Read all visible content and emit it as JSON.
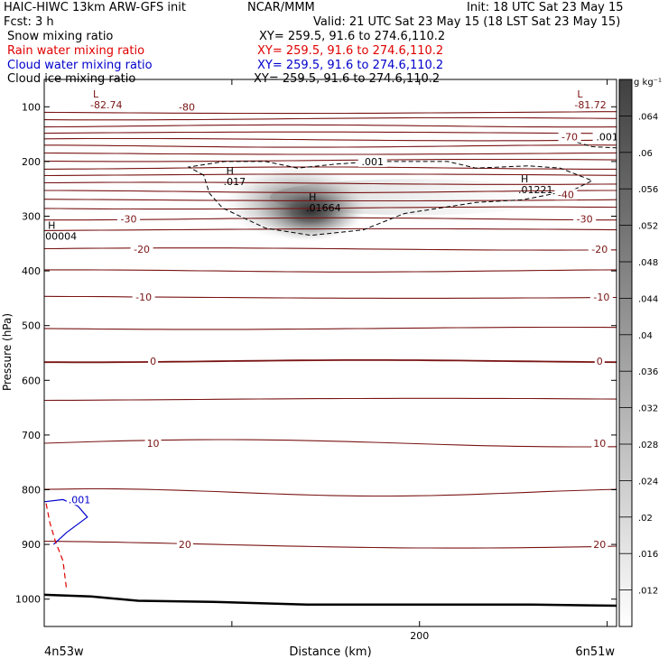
{
  "header": {
    "line1_left": "HAIC-HIWC 13km ARW-GFS init",
    "line1_center": "NCAR/MMM",
    "line1_right": "Init: 18 UTC Sat 23 May 15",
    "line2_left": "Fcst:    3 h",
    "line2_right": "Valid: 21 UTC Sat 23 May 15 (18 LST Sat 23 May 15)"
  },
  "fields": [
    {
      "name": "Snow mixing ratio",
      "xy": "XY= 259.5, 91.6 to 274.6,110.2",
      "color": "#000000"
    },
    {
      "name": "Rain water mixing ratio",
      "xy": "XY= 259.5, 91.6 to 274.6,110.2",
      "color": "#e00000"
    },
    {
      "name": "Cloud water mixing ratio",
      "xy": "XY= 259.5, 91.6 to 274.6,110.2",
      "color": "#0000cc"
    },
    {
      "name": "Cloud ice mixing ratio",
      "xy": "XY= 259.5, 91.6 to 274.6,110.2",
      "color": "#000000"
    }
  ],
  "chart_data": {
    "type": "cross-section",
    "xlabel": "Distance (km)",
    "ylabel": "Pressure (hPa)",
    "xlim": [
      0,
      305
    ],
    "ylim": [
      1050,
      50
    ],
    "yscale": "linear, inverted",
    "x_ticks": [
      0,
      100,
      200,
      300
    ],
    "x_tick_labels": [
      "",
      "",
      "200",
      ""
    ],
    "y_ticks": [
      100,
      200,
      300,
      400,
      500,
      600,
      700,
      800,
      900,
      1000
    ],
    "x_left_label": "4n53w",
    "x_right_label": "6n51w",
    "colorbar": {
      "unit": "g kg⁻¹",
      "labels": [
        ".012",
        ".016",
        ".02",
        ".024",
        ".028",
        ".032",
        ".036",
        ".04",
        ".044",
        ".048",
        ".052",
        ".056",
        ".06",
        ".064"
      ],
      "min": 0.008,
      "max": 0.068,
      "color_low": "#ffffff",
      "color_high": "#404040"
    },
    "temperature_contours": {
      "color": "#7a1414",
      "levels": [
        {
          "p": 100,
          "value": -80,
          "label_x": 76,
          "label": "-80"
        },
        {
          "p": 155,
          "value": -70,
          "label_x": 280,
          "label": "-70"
        },
        {
          "p": 260,
          "value": -40,
          "label_x": 278,
          "label": "-40"
        },
        {
          "p": 305,
          "value": -30,
          "label_x": 45,
          "label": "-30"
        },
        {
          "p": 305,
          "value": -30,
          "label_x": 288,
          "label": "-30"
        },
        {
          "p": 360,
          "value": -20,
          "label_x": 52,
          "label": "-20"
        },
        {
          "p": 360,
          "value": -20,
          "label_x": 296,
          "label": "-20"
        },
        {
          "p": 448,
          "value": -10,
          "label_x": 53,
          "label": "-10"
        },
        {
          "p": 448,
          "value": -10,
          "label_x": 297,
          "label": "-10"
        },
        {
          "p": 565,
          "value": 0,
          "label_x": 58,
          "label": "0"
        },
        {
          "p": 565,
          "value": 0,
          "label_x": 296,
          "label": "0"
        },
        {
          "p": 715,
          "value": 10,
          "label_x": 58,
          "label": "10"
        },
        {
          "p": 715,
          "value": 10,
          "label_x": 296,
          "label": "10"
        },
        {
          "p": 900,
          "value": 20,
          "label_x": 75,
          "label": "20"
        },
        {
          "p": 900,
          "value": 20,
          "label_x": 296,
          "label": "20"
        }
      ],
      "line_pressures": [
        110,
        122,
        135,
        148,
        160,
        172,
        185,
        198,
        212,
        225,
        240,
        255,
        270,
        285,
        305,
        325,
        360,
        400,
        448,
        505,
        565,
        635,
        715,
        805,
        900
      ]
    },
    "extrema_labels": [
      {
        "type": "L",
        "x": 26,
        "p": 90,
        "value": "-82.74",
        "color": "#7a1414"
      },
      {
        "type": "L",
        "x": 284,
        "p": 90,
        "value": "-81.72",
        "color": "#7a1414"
      },
      {
        "type": "H",
        "x": 97,
        "p": 230,
        "value": ".017",
        "color": "#000000"
      },
      {
        "type": "H",
        "x": 141,
        "p": 278,
        "value": ".01664",
        "color": "#000000"
      },
      {
        "type": "H",
        "x": 254,
        "p": 245,
        "value": ".01221",
        "color": "#000000"
      },
      {
        "type": "H",
        "x": 2,
        "p": 330,
        "value": "00004",
        "color": "#000000"
      }
    ],
    "cloud_ice_contour": {
      "level": ".001",
      "label_positions": [
        {
          "x": 175,
          "p": 200
        },
        {
          "x": 300,
          "p": 155
        }
      ],
      "outline": [
        [
          85,
          225
        ],
        [
          77,
          210
        ],
        [
          96,
          200
        ],
        [
          118,
          200
        ],
        [
          135,
          212
        ],
        [
          155,
          205
        ],
        [
          175,
          200
        ],
        [
          215,
          200
        ],
        [
          230,
          212
        ],
        [
          258,
          208
        ],
        [
          275,
          212
        ],
        [
          292,
          235
        ],
        [
          282,
          252
        ],
        [
          255,
          270
        ],
        [
          230,
          275
        ],
        [
          192,
          295
        ],
        [
          170,
          325
        ],
        [
          142,
          335
        ],
        [
          118,
          322
        ],
        [
          95,
          285
        ],
        [
          88,
          258
        ],
        [
          85,
          225
        ]
      ],
      "corner_curve": [
        [
          284,
          165
        ],
        [
          292,
          173
        ],
        [
          305,
          175
        ]
      ]
    },
    "snow_shading": {
      "center_x": 142,
      "center_p": 290,
      "peak_value": 0.01664,
      "tail_to_x": 270
    },
    "cloud_water_contour": {
      "level": ".001",
      "color": "#0000cc",
      "points": [
        [
          0,
          822
        ],
        [
          10,
          818
        ],
        [
          18,
          830
        ],
        [
          23,
          850
        ],
        [
          12,
          878
        ],
        [
          5,
          900
        ]
      ]
    },
    "rain_water_contour": {
      "color": "#e00000",
      "points": [
        [
          1,
          825
        ],
        [
          3,
          860
        ],
        [
          6,
          895
        ],
        [
          10,
          930
        ],
        [
          12,
          985
        ]
      ]
    },
    "terrain": {
      "points": [
        [
          0,
          992
        ],
        [
          25,
          995
        ],
        [
          50,
          1003
        ],
        [
          90,
          1005
        ],
        [
          140,
          1010
        ],
        [
          200,
          1010
        ],
        [
          260,
          1010
        ],
        [
          305,
          1012
        ]
      ]
    }
  }
}
